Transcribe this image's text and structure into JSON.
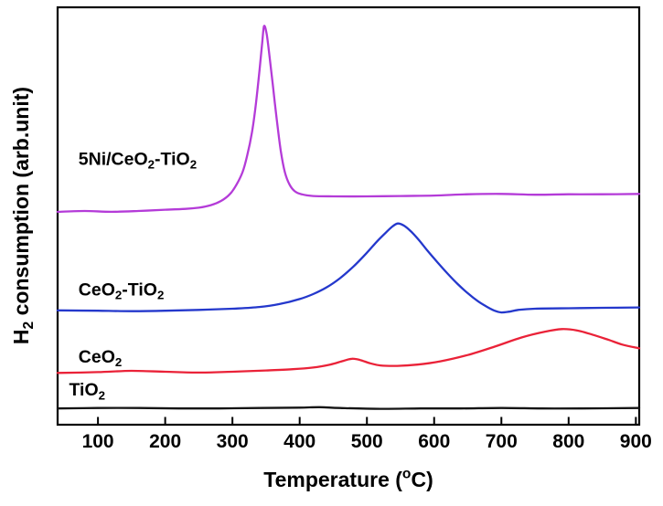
{
  "figure": {
    "background": "#ffffff",
    "axis_color": "#000000"
  },
  "chart_data": {
    "type": "line",
    "title": "",
    "xlabel": "Temperature (°C)",
    "xlabel_parts": [
      {
        "t": "Temperature ("
      },
      {
        "t": "o",
        "sup": true
      },
      {
        "t": "C)"
      }
    ],
    "ylabel": "H2 consumption (arb.unit)",
    "ylabel_parts": [
      {
        "t": "H"
      },
      {
        "t": "2",
        "sub": true
      },
      {
        "t": " consumption (arb.unit)"
      }
    ],
    "xlim": [
      40,
      905
    ],
    "ylim": [
      0,
      100
    ],
    "x_ticks": [
      100,
      200,
      300,
      400,
      500,
      600,
      700,
      800,
      900
    ],
    "y_ticks": [],
    "grid": false,
    "legend": "inline-labels",
    "series": [
      {
        "name": "TiO2",
        "color": "#141414",
        "peak_temperatures_c": [],
        "points": [
          [
            40,
            3.9
          ],
          [
            100,
            4.0
          ],
          [
            160,
            4.0
          ],
          [
            220,
            3.9
          ],
          [
            280,
            3.9
          ],
          [
            340,
            4.0
          ],
          [
            400,
            4.1
          ],
          [
            430,
            4.2
          ],
          [
            460,
            4.0
          ],
          [
            520,
            3.8
          ],
          [
            580,
            3.9
          ],
          [
            640,
            3.9
          ],
          [
            700,
            4.0
          ],
          [
            760,
            3.9
          ],
          [
            820,
            3.9
          ],
          [
            905,
            4.0
          ]
        ]
      },
      {
        "name": "CeO2",
        "color": "#ea2238",
        "peak_temperatures_c": [
          480,
          795
        ],
        "points": [
          [
            40,
            12.4
          ],
          [
            100,
            12.6
          ],
          [
            150,
            12.9
          ],
          [
            200,
            12.7
          ],
          [
            250,
            12.5
          ],
          [
            300,
            12.7
          ],
          [
            350,
            13.0
          ],
          [
            390,
            13.3
          ],
          [
            420,
            13.7
          ],
          [
            445,
            14.4
          ],
          [
            465,
            15.3
          ],
          [
            478,
            15.8
          ],
          [
            490,
            15.5
          ],
          [
            505,
            14.7
          ],
          [
            520,
            14.2
          ],
          [
            545,
            14.1
          ],
          [
            575,
            14.4
          ],
          [
            610,
            15.2
          ],
          [
            650,
            16.7
          ],
          [
            690,
            18.7
          ],
          [
            730,
            20.9
          ],
          [
            765,
            22.3
          ],
          [
            790,
            22.9
          ],
          [
            812,
            22.6
          ],
          [
            835,
            21.6
          ],
          [
            860,
            20.3
          ],
          [
            880,
            19.2
          ],
          [
            905,
            18.3
          ]
        ]
      },
      {
        "name": "CeO2-TiO2",
        "color": "#2438cc",
        "peak_temperatures_c": [
          540
        ],
        "points": [
          [
            40,
            27.4
          ],
          [
            100,
            27.3
          ],
          [
            150,
            27.2
          ],
          [
            200,
            27.3
          ],
          [
            250,
            27.5
          ],
          [
            300,
            27.8
          ],
          [
            340,
            28.2
          ],
          [
            370,
            28.9
          ],
          [
            400,
            30.1
          ],
          [
            420,
            31.3
          ],
          [
            440,
            32.9
          ],
          [
            460,
            35.1
          ],
          [
            480,
            37.9
          ],
          [
            500,
            41.2
          ],
          [
            515,
            43.9
          ],
          [
            528,
            46.0
          ],
          [
            538,
            47.5
          ],
          [
            546,
            48.2
          ],
          [
            555,
            47.7
          ],
          [
            565,
            46.4
          ],
          [
            577,
            44.3
          ],
          [
            590,
            41.7
          ],
          [
            605,
            38.9
          ],
          [
            620,
            36.2
          ],
          [
            635,
            33.7
          ],
          [
            650,
            31.5
          ],
          [
            665,
            29.6
          ],
          [
            678,
            28.3
          ],
          [
            690,
            27.3
          ],
          [
            700,
            26.9
          ],
          [
            712,
            27.1
          ],
          [
            725,
            27.5
          ],
          [
            750,
            27.8
          ],
          [
            800,
            27.9
          ],
          [
            850,
            28.0
          ],
          [
            905,
            28.1
          ]
        ]
      },
      {
        "name": "5Ni/CeO2-TiO2",
        "color": "#b43bd8",
        "peak_temperatures_c": [
          345
        ],
        "points": [
          [
            40,
            51.0
          ],
          [
            80,
            51.2
          ],
          [
            120,
            51.0
          ],
          [
            160,
            51.2
          ],
          [
            200,
            51.5
          ],
          [
            230,
            51.7
          ],
          [
            250,
            52.0
          ],
          [
            268,
            52.6
          ],
          [
            283,
            53.6
          ],
          [
            296,
            55.2
          ],
          [
            306,
            57.5
          ],
          [
            315,
            60.5
          ],
          [
            322,
            64.5
          ],
          [
            329,
            70.0
          ],
          [
            335,
            77.0
          ],
          [
            340,
            84.5
          ],
          [
            344,
            91.0
          ],
          [
            347,
            95.5
          ],
          [
            351,
            93.5
          ],
          [
            355,
            88.5
          ],
          [
            360,
            81.5
          ],
          [
            366,
            73.0
          ],
          [
            372,
            65.5
          ],
          [
            378,
            60.5
          ],
          [
            385,
            57.5
          ],
          [
            393,
            55.9
          ],
          [
            403,
            55.2
          ],
          [
            420,
            54.8
          ],
          [
            450,
            54.7
          ],
          [
            500,
            54.7
          ],
          [
            550,
            54.8
          ],
          [
            600,
            54.9
          ],
          [
            650,
            55.2
          ],
          [
            700,
            55.3
          ],
          [
            750,
            55.1
          ],
          [
            800,
            55.2
          ],
          [
            850,
            55.2
          ],
          [
            905,
            55.3
          ]
        ]
      }
    ],
    "annotations": [
      {
        "label_for": "5Ni/CeO2-TiO2",
        "parts": [
          {
            "t": "5Ni/CeO"
          },
          {
            "t": "2",
            "sub": true
          },
          {
            "t": "-TiO"
          },
          {
            "t": "2",
            "sub": true
          }
        ],
        "t": 71,
        "v": 62.3,
        "font_size": 19.5,
        "color": "#000000"
      },
      {
        "label_for": "CeO2-TiO2",
        "parts": [
          {
            "t": "CeO"
          },
          {
            "t": "2",
            "sub": true
          },
          {
            "t": "-TiO"
          },
          {
            "t": "2",
            "sub": true
          }
        ],
        "t": 71,
        "v": 31.0,
        "font_size": 19.5,
        "color": "#000000"
      },
      {
        "label_for": "CeO2",
        "parts": [
          {
            "t": "CeO"
          },
          {
            "t": "2",
            "sub": true
          }
        ],
        "t": 71,
        "v": 14.9,
        "font_size": 19.5,
        "color": "#000000"
      },
      {
        "label_for": "TiO2",
        "parts": [
          {
            "t": "TiO"
          },
          {
            "t": "2",
            "sub": true
          }
        ],
        "t": 57,
        "v": 7.0,
        "font_size": 19.5,
        "color": "#000000"
      }
    ]
  }
}
